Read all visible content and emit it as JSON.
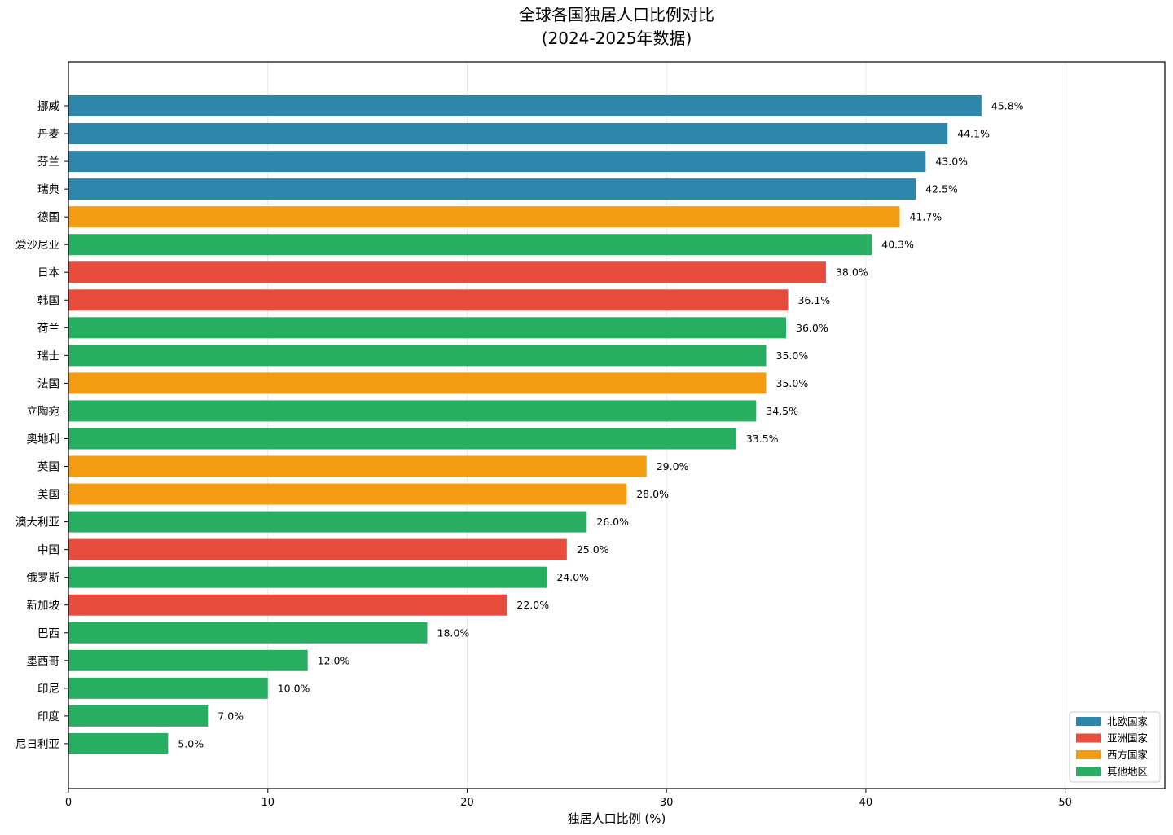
{
  "chart_data": {
    "type": "bar",
    "orientation": "horizontal",
    "title": "全球各国独居人口比例对比",
    "subtitle": "(2024-2025年数据)",
    "xlabel": "独居人口比例 (%)",
    "ylabel": "",
    "xlim": [
      0,
      55
    ],
    "xticks": [
      0,
      10,
      20,
      30,
      40,
      50
    ],
    "grid": "x",
    "legend_position": "bottom-right",
    "value_suffix": "%",
    "legend": [
      {
        "name": "北欧国家",
        "color": "#2E86AB"
      },
      {
        "name": "亚洲国家",
        "color": "#E74C3C"
      },
      {
        "name": "西方国家",
        "color": "#F39C12"
      },
      {
        "name": "其他地区",
        "color": "#27AE60"
      }
    ],
    "bars": [
      {
        "category": "挪威",
        "value": 45.8,
        "group": 0
      },
      {
        "category": "丹麦",
        "value": 44.1,
        "group": 0
      },
      {
        "category": "芬兰",
        "value": 43.0,
        "group": 0
      },
      {
        "category": "瑞典",
        "value": 42.5,
        "group": 0
      },
      {
        "category": "德国",
        "value": 41.7,
        "group": 2
      },
      {
        "category": "爱沙尼亚",
        "value": 40.3,
        "group": 3
      },
      {
        "category": "日本",
        "value": 38.0,
        "group": 1
      },
      {
        "category": "韩国",
        "value": 36.1,
        "group": 1
      },
      {
        "category": "荷兰",
        "value": 36.0,
        "group": 3
      },
      {
        "category": "瑞士",
        "value": 35.0,
        "group": 3
      },
      {
        "category": "法国",
        "value": 35.0,
        "group": 2
      },
      {
        "category": "立陶宛",
        "value": 34.5,
        "group": 3
      },
      {
        "category": "奥地利",
        "value": 33.5,
        "group": 3
      },
      {
        "category": "英国",
        "value": 29.0,
        "group": 2
      },
      {
        "category": "美国",
        "value": 28.0,
        "group": 2
      },
      {
        "category": "澳大利亚",
        "value": 26.0,
        "group": 3
      },
      {
        "category": "中国",
        "value": 25.0,
        "group": 1
      },
      {
        "category": "俄罗斯",
        "value": 24.0,
        "group": 3
      },
      {
        "category": "新加坡",
        "value": 22.0,
        "group": 1
      },
      {
        "category": "巴西",
        "value": 18.0,
        "group": 3
      },
      {
        "category": "墨西哥",
        "value": 12.0,
        "group": 3
      },
      {
        "category": "印尼",
        "value": 10.0,
        "group": 3
      },
      {
        "category": "印度",
        "value": 7.0,
        "group": 3
      },
      {
        "category": "尼日利亚",
        "value": 5.0,
        "group": 3
      }
    ]
  }
}
